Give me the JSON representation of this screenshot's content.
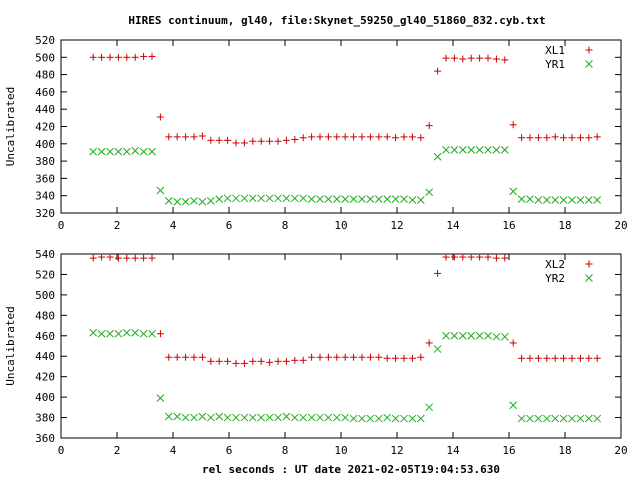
{
  "title": "HIRES continuum, gl40, file:Skynet_59250_gl40_51860_832.cyb.txt",
  "colors": {
    "red": "#cc0000",
    "green": "#22aa22"
  },
  "chart_data": [
    {
      "type": "scatter",
      "ylabel": "Uncalibrated",
      "xlabel": "",
      "xlim": [
        0,
        20
      ],
      "ylim": [
        320,
        520
      ],
      "xticks": [
        0,
        2,
        4,
        6,
        8,
        10,
        12,
        14,
        16,
        18,
        20
      ],
      "yticks": [
        320,
        340,
        360,
        380,
        400,
        420,
        440,
        460,
        480,
        500,
        520
      ],
      "legend_position": "top-right",
      "series": [
        {
          "name": "XL1",
          "marker": "plus",
          "color": "#cc0000",
          "x": [
            1.15,
            1.45,
            1.75,
            2.05,
            2.35,
            2.65,
            2.95,
            3.25,
            3.55,
            3.85,
            4.15,
            4.45,
            4.75,
            5.05,
            5.35,
            5.65,
            5.95,
            6.25,
            6.55,
            6.85,
            7.15,
            7.45,
            7.75,
            8.05,
            8.35,
            8.65,
            8.95,
            9.25,
            9.55,
            9.85,
            10.15,
            10.45,
            10.75,
            11.05,
            11.35,
            11.65,
            11.95,
            12.25,
            12.55,
            12.85,
            13.15,
            13.45,
            13.75,
            14.05,
            14.35,
            14.65,
            14.95,
            15.25,
            15.55,
            15.85,
            16.15,
            16.45,
            16.75,
            17.05,
            17.35,
            17.65,
            17.95,
            18.25,
            18.55,
            18.85,
            19.15
          ],
          "y": [
            500,
            500,
            500,
            500,
            500,
            500,
            501,
            501,
            431,
            408,
            408,
            408,
            408,
            409,
            404,
            404,
            404,
            401,
            401,
            403,
            403,
            403,
            403,
            404,
            405,
            407,
            408,
            408,
            408,
            408,
            408,
            408,
            408,
            408,
            408,
            408,
            407,
            408,
            408,
            407,
            421,
            484,
            499,
            499,
            498,
            499,
            499,
            499,
            498,
            497,
            422,
            407,
            407,
            407,
            407,
            408,
            407,
            407,
            407,
            407,
            408
          ]
        },
        {
          "name": "YR1",
          "marker": "cross",
          "color": "#22aa22",
          "x": [
            1.15,
            1.45,
            1.75,
            2.05,
            2.35,
            2.65,
            2.95,
            3.25,
            3.55,
            3.85,
            4.15,
            4.45,
            4.75,
            5.05,
            5.35,
            5.65,
            5.95,
            6.25,
            6.55,
            6.85,
            7.15,
            7.45,
            7.75,
            8.05,
            8.35,
            8.65,
            8.95,
            9.25,
            9.55,
            9.85,
            10.15,
            10.45,
            10.75,
            11.05,
            11.35,
            11.65,
            11.95,
            12.25,
            12.55,
            12.85,
            13.15,
            13.45,
            13.75,
            14.05,
            14.35,
            14.65,
            14.95,
            15.25,
            15.55,
            15.85,
            16.15,
            16.45,
            16.75,
            17.05,
            17.35,
            17.65,
            17.95,
            18.25,
            18.55,
            18.85,
            19.15
          ],
          "y": [
            391,
            391,
            391,
            391,
            391,
            392,
            391,
            391,
            346,
            334,
            333,
            333,
            334,
            333,
            334,
            336,
            337,
            337,
            337,
            337,
            337,
            337,
            337,
            337,
            337,
            337,
            336,
            336,
            336,
            336,
            336,
            336,
            336,
            336,
            336,
            336,
            336,
            336,
            335,
            335,
            344,
            385,
            393,
            393,
            393,
            393,
            393,
            393,
            393,
            393,
            345,
            336,
            336,
            335,
            335,
            335,
            335,
            335,
            335,
            335,
            335
          ]
        }
      ]
    },
    {
      "type": "scatter",
      "ylabel": "Uncalibrated",
      "xlabel": "rel seconds : UT date 2021-02-05T19:04:53.630",
      "xlim": [
        0,
        20
      ],
      "ylim": [
        360,
        540
      ],
      "xticks": [
        0,
        2,
        4,
        6,
        8,
        10,
        12,
        14,
        16,
        18,
        20
      ],
      "yticks": [
        360,
        380,
        400,
        420,
        440,
        460,
        480,
        500,
        520,
        540
      ],
      "legend_position": "top-right",
      "series": [
        {
          "name": "XL2",
          "marker": "plus",
          "color": "#cc0000",
          "x": [
            1.15,
            1.45,
            1.75,
            2.05,
            2.35,
            2.65,
            2.95,
            3.25,
            3.55,
            3.85,
            4.15,
            4.45,
            4.75,
            5.05,
            5.35,
            5.65,
            5.95,
            6.25,
            6.55,
            6.85,
            7.15,
            7.45,
            7.75,
            8.05,
            8.35,
            8.65,
            8.95,
            9.25,
            9.55,
            9.85,
            10.15,
            10.45,
            10.75,
            11.05,
            11.35,
            11.65,
            11.95,
            12.25,
            12.55,
            12.85,
            13.15,
            13.45,
            13.75,
            14.05,
            14.35,
            14.65,
            14.95,
            15.25,
            15.55,
            15.85,
            16.15,
            16.45,
            16.75,
            17.05,
            17.35,
            17.65,
            17.95,
            18.25,
            18.55,
            18.85,
            19.15
          ],
          "y": [
            536,
            537,
            537,
            536,
            536,
            536,
            536,
            536,
            462,
            439,
            439,
            439,
            439,
            439,
            435,
            435,
            435,
            433,
            433,
            435,
            435,
            434,
            435,
            435,
            436,
            436,
            439,
            439,
            439,
            439,
            439,
            439,
            439,
            439,
            439,
            438,
            438,
            438,
            438,
            439,
            453,
            521,
            537,
            537,
            537,
            537,
            537,
            537,
            536,
            536,
            453,
            438,
            438,
            438,
            438,
            438,
            438,
            438,
            438,
            438,
            438
          ]
        },
        {
          "name": "YR2",
          "marker": "cross",
          "color": "#22aa22",
          "x": [
            1.15,
            1.45,
            1.75,
            2.05,
            2.35,
            2.65,
            2.95,
            3.25,
            3.55,
            3.85,
            4.15,
            4.45,
            4.75,
            5.05,
            5.35,
            5.65,
            5.95,
            6.25,
            6.55,
            6.85,
            7.15,
            7.45,
            7.75,
            8.05,
            8.35,
            8.65,
            8.95,
            9.25,
            9.55,
            9.85,
            10.15,
            10.45,
            10.75,
            11.05,
            11.35,
            11.65,
            11.95,
            12.25,
            12.55,
            12.85,
            13.15,
            13.45,
            13.75,
            14.05,
            14.35,
            14.65,
            14.95,
            15.25,
            15.55,
            15.85,
            16.15,
            16.45,
            16.75,
            17.05,
            17.35,
            17.65,
            17.95,
            18.25,
            18.55,
            18.85,
            19.15
          ],
          "y": [
            463,
            462,
            462,
            462,
            463,
            463,
            462,
            462,
            399,
            381,
            381,
            380,
            380,
            381,
            380,
            381,
            380,
            380,
            380,
            380,
            380,
            380,
            380,
            381,
            380,
            380,
            380,
            380,
            380,
            380,
            380,
            379,
            379,
            379,
            379,
            380,
            379,
            379,
            379,
            379,
            390,
            447,
            460,
            460,
            460,
            460,
            460,
            460,
            459,
            459,
            392,
            379,
            379,
            379,
            379,
            379,
            379,
            379,
            379,
            379,
            379
          ]
        }
      ]
    }
  ]
}
